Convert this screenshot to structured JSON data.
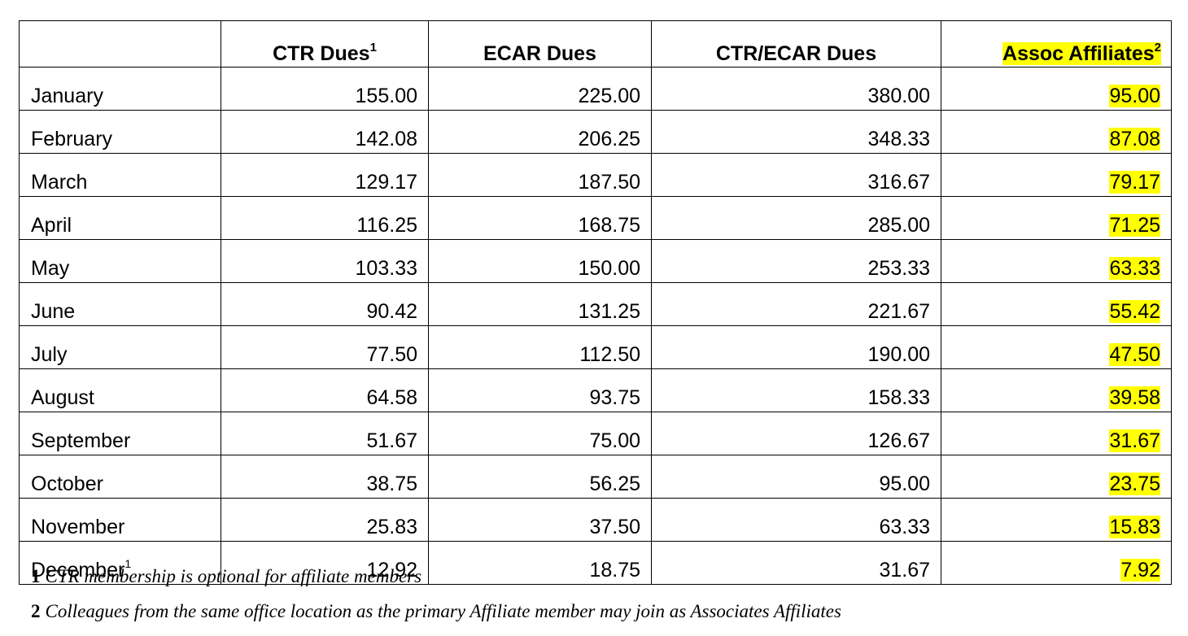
{
  "table": {
    "headers": {
      "month": "",
      "ctr": "CTR Dues",
      "ctr_sup": "1",
      "ecar": "ECAR Dues",
      "ctr_ecar": "CTR/ECAR Dues",
      "assoc": "Assoc Affiliates",
      "assoc_sup": "2"
    },
    "rows": [
      {
        "month": "January",
        "month_sup": "",
        "ctr": "155.00",
        "ecar": "225.00",
        "ctr_ecar": "380.00",
        "assoc": "95.00"
      },
      {
        "month": "February",
        "month_sup": "",
        "ctr": "142.08",
        "ecar": "206.25",
        "ctr_ecar": "348.33",
        "assoc": "87.08"
      },
      {
        "month": "March",
        "month_sup": "",
        "ctr": "129.17",
        "ecar": "187.50",
        "ctr_ecar": "316.67",
        "assoc": "79.17"
      },
      {
        "month": "April",
        "month_sup": "",
        "ctr": "116.25",
        "ecar": "168.75",
        "ctr_ecar": "285.00",
        "assoc": "71.25"
      },
      {
        "month": "May",
        "month_sup": "",
        "ctr": "103.33",
        "ecar": "150.00",
        "ctr_ecar": "253.33",
        "assoc": "63.33"
      },
      {
        "month": "June",
        "month_sup": "",
        "ctr": "90.42",
        "ecar": "131.25",
        "ctr_ecar": "221.67",
        "assoc": "55.42"
      },
      {
        "month": "July",
        "month_sup": "",
        "ctr": "77.50",
        "ecar": "112.50",
        "ctr_ecar": "190.00",
        "assoc": "47.50"
      },
      {
        "month": "August",
        "month_sup": "",
        "ctr": "64.58",
        "ecar": "93.75",
        "ctr_ecar": "158.33",
        "assoc": "39.58"
      },
      {
        "month": "September",
        "month_sup": "",
        "ctr": "51.67",
        "ecar": "75.00",
        "ctr_ecar": "126.67",
        "assoc": "31.67"
      },
      {
        "month": "October",
        "month_sup": "",
        "ctr": "38.75",
        "ecar": "56.25",
        "ctr_ecar": "95.00",
        "assoc": "23.75"
      },
      {
        "month": "November",
        "month_sup": "",
        "ctr": "25.83",
        "ecar": "37.50",
        "ctr_ecar": "63.33",
        "assoc": "15.83"
      },
      {
        "month": "December",
        "month_sup": "1",
        "ctr": "12.92",
        "ecar": "18.75",
        "ctr_ecar": "31.67",
        "assoc": "7.92"
      }
    ]
  },
  "footnotes": [
    {
      "number": "1",
      "text": "CTR membership is optional for affiliate members"
    },
    {
      "number": "2",
      "text": "Colleagues from the same office location as the primary Affiliate member may join as Associates Affiliates"
    }
  ],
  "colors": {
    "highlight": "#ffff00",
    "border": "#000000",
    "text": "#000000"
  }
}
